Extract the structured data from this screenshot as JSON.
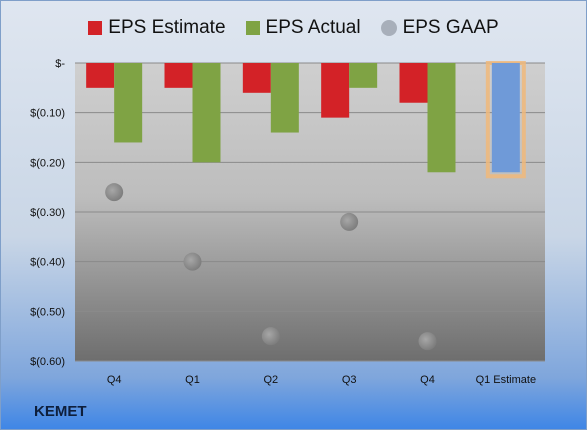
{
  "brand": "KEMET",
  "colors": {
    "estimate": "#d32227",
    "actual": "#7fa344",
    "gaap": "#a8afba",
    "highlight_fill": "#6f9ad8",
    "highlight_border": "#f0b87a"
  },
  "legend": [
    {
      "label": "EPS Estimate",
      "shape": "square",
      "color": "#d32227"
    },
    {
      "label": "EPS Actual",
      "shape": "square",
      "color": "#7fa344"
    },
    {
      "label": "EPS GAAP",
      "shape": "circle",
      "color": "#a8afba"
    }
  ],
  "chart_data": {
    "type": "bar",
    "categories": [
      "Q4",
      "Q1",
      "Q2",
      "Q3",
      "Q4",
      "Q1 Estimate"
    ],
    "series": [
      {
        "name": "EPS Estimate",
        "kind": "bar",
        "values": [
          -0.05,
          -0.05,
          -0.06,
          -0.11,
          -0.08,
          null
        ]
      },
      {
        "name": "EPS Actual",
        "kind": "bar",
        "values": [
          -0.16,
          -0.2,
          -0.14,
          -0.05,
          -0.22,
          -0.22
        ]
      },
      {
        "name": "EPS GAAP",
        "kind": "scatter",
        "values": [
          -0.26,
          -0.4,
          -0.55,
          -0.32,
          -0.56,
          null
        ]
      }
    ],
    "highlight_category": "Q1 Estimate",
    "y_tick_labels": [
      "$-",
      "$(0.10)",
      "$(0.20)",
      "$(0.30)",
      "$(0.40)",
      "$(0.50)",
      "$(0.60)"
    ],
    "y_ticks": [
      0,
      -0.1,
      -0.2,
      -0.3,
      -0.4,
      -0.5,
      -0.6
    ],
    "ylim": [
      -0.6,
      0
    ],
    "grid": true,
    "legend_position": "top"
  }
}
